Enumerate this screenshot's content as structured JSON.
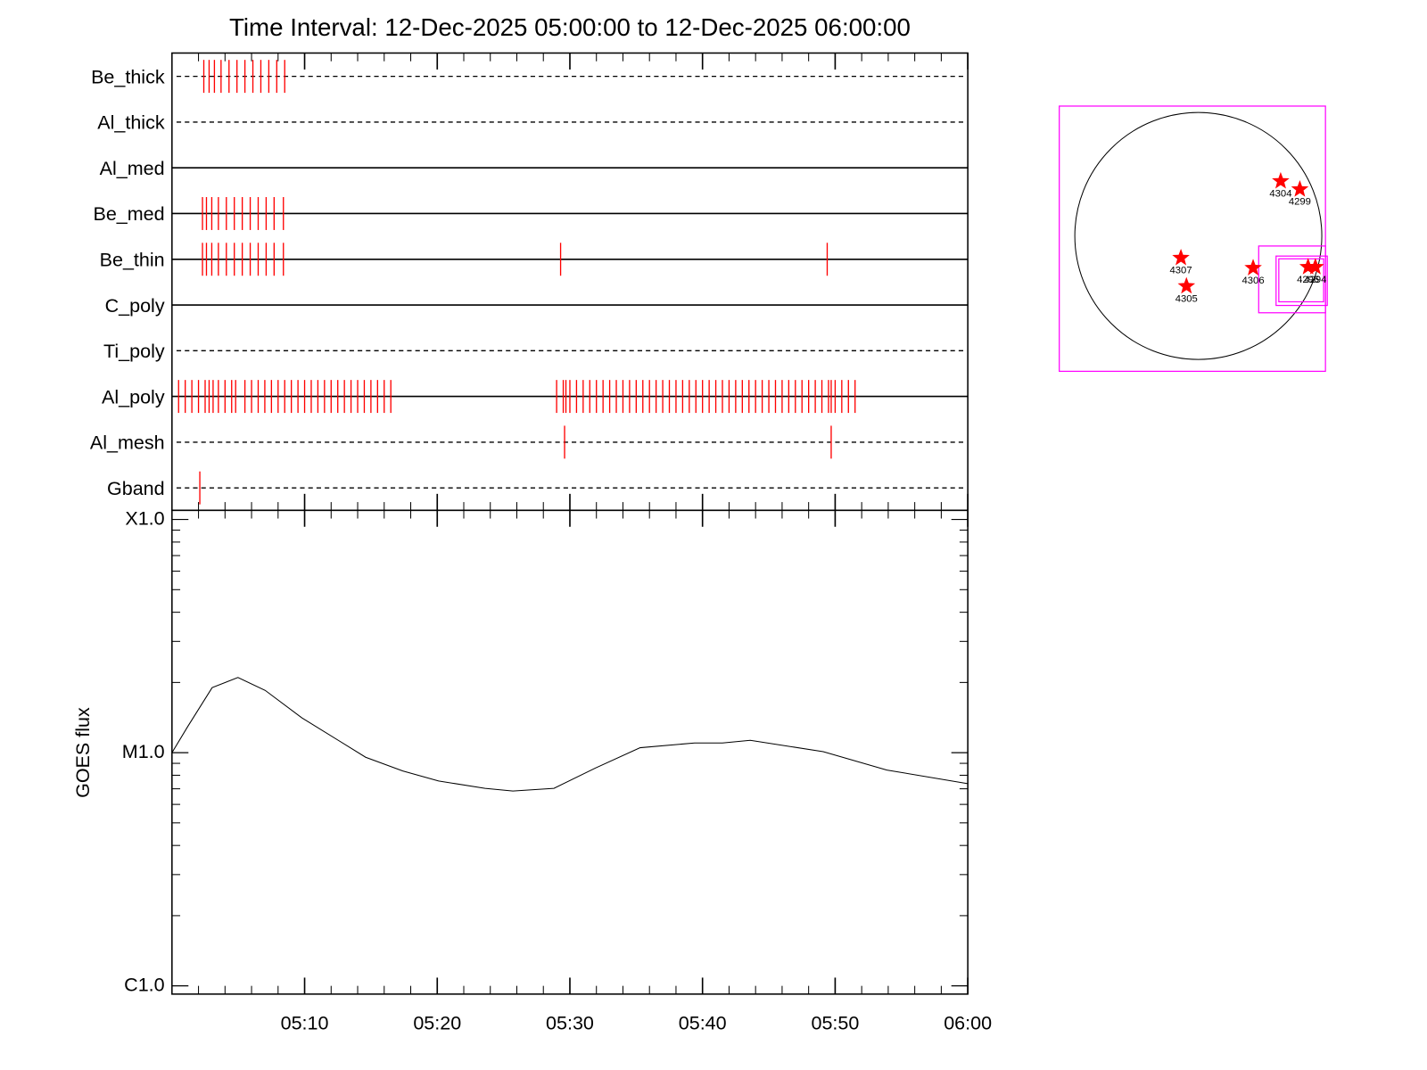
{
  "chart_data": [
    {
      "type": "event",
      "title": "Time Interval: 12-Dec-2025 05:00:00 to 12-Dec-2025 06:00:00",
      "xlim": [
        0,
        60
      ],
      "series": [
        {
          "name": "Be_thick",
          "line": "dashed",
          "color": "#ff0000",
          "x": [
            2.4,
            2.8,
            3.2,
            3.7,
            4.3,
            4.9,
            5.5,
            6.1,
            6.7,
            7.3,
            7.9,
            8.5
          ]
        },
        {
          "name": "Al_thick",
          "line": "dashed",
          "color": "#ff0000",
          "x": []
        },
        {
          "name": "Al_med",
          "line": "solid",
          "color": "#ff0000",
          "x": []
        },
        {
          "name": "Be_med",
          "line": "solid",
          "color": "#ff0000",
          "x": [
            2.3,
            2.6,
            3.0,
            3.5,
            4.1,
            4.7,
            5.3,
            5.9,
            6.5,
            7.1,
            7.7,
            8.4
          ]
        },
        {
          "name": "Be_thin",
          "line": "solid",
          "color": "#ff0000",
          "x": [
            2.3,
            2.6,
            3.0,
            3.5,
            4.1,
            4.7,
            5.3,
            5.9,
            6.5,
            7.1,
            7.7,
            8.4,
            29.3,
            49.4
          ]
        },
        {
          "name": "C_poly",
          "line": "solid",
          "color": "#ff0000",
          "x": []
        },
        {
          "name": "Ti_poly",
          "line": "dashed",
          "color": "#ff0000",
          "x": []
        },
        {
          "name": "Al_poly",
          "line": "solid",
          "color": "#ff0000",
          "x": [
            0.5,
            1.0,
            1.5,
            2.0,
            2.5,
            2.8,
            3.1,
            3.5,
            4.0,
            4.5,
            4.8,
            5.5,
            6.0,
            6.5,
            7.0,
            7.5,
            8.0,
            8.5,
            9.0,
            9.5,
            10.0,
            10.5,
            11.0,
            11.5,
            12.0,
            12.5,
            13.0,
            13.5,
            14.0,
            14.5,
            15.0,
            15.5,
            16.0,
            16.5,
            29.0,
            29.5,
            29.7,
            30.0,
            30.5,
            31.0,
            31.5,
            32.0,
            32.5,
            33.0,
            33.5,
            34.0,
            34.5,
            35.0,
            35.5,
            36.0,
            36.5,
            37.0,
            37.5,
            38.0,
            38.5,
            39.0,
            39.5,
            40.0,
            40.5,
            41.0,
            41.5,
            42.0,
            42.5,
            43.0,
            43.5,
            44.0,
            44.5,
            45.0,
            45.5,
            46.0,
            46.5,
            47.0,
            47.5,
            48.0,
            48.5,
            49.0,
            49.5,
            49.7,
            50.0,
            50.5,
            51.0,
            51.5
          ]
        },
        {
          "name": "Al_mesh",
          "line": "dashed",
          "color": "#ff0000",
          "x": [
            29.6,
            49.7
          ]
        },
        {
          "name": "Gband",
          "line": "dashed",
          "color": "#ff0000",
          "x": [
            2.1
          ]
        }
      ]
    },
    {
      "type": "line",
      "ylabel": "GOES flux",
      "log": true,
      "color": "#000000",
      "xlim": [
        0,
        60
      ],
      "xticks": [
        {
          "value": 10,
          "label": "05:10"
        },
        {
          "value": 20,
          "label": "05:20"
        },
        {
          "value": 30,
          "label": "05:30"
        },
        {
          "value": 40,
          "label": "05:40"
        },
        {
          "value": 50,
          "label": "05:50"
        },
        {
          "value": 60,
          "label": "06:00"
        }
      ],
      "ylim": [
        1e-06,
        0.0001
      ],
      "yticks": [
        {
          "value": 1e-06,
          "label": "C1.0"
        },
        {
          "value": 1e-05,
          "label": "M1.0"
        },
        {
          "value": 0.0001,
          "label": "X1.0"
        }
      ],
      "x": [
        0,
        1.17,
        3.03,
        4.97,
        7.03,
        9.79,
        14.6,
        17.4,
        20.1,
        23.6,
        25.7,
        28.8,
        31.9,
        35.3,
        39.4,
        41.5,
        43.6,
        49.1,
        53.9,
        60
      ],
      "values": [
        1e-05,
        1.29e-05,
        1.9e-05,
        2.1e-05,
        1.85e-05,
        1.41e-05,
        9.56e-06,
        8.35e-06,
        7.56e-06,
        7.03e-06,
        6.85e-06,
        7.03e-06,
        8.58e-06,
        1.05e-05,
        1.1e-05,
        1.1e-05,
        1.13e-05,
        1.01e-05,
        8.42e-06,
        7.36e-06
      ]
    },
    {
      "type": "map",
      "color": "#ff0000",
      "series": [
        {
          "name": "4304",
          "x": 0.667,
          "y": 0.444
        },
        {
          "name": "4299",
          "x": 0.822,
          "y": 0.378
        },
        {
          "name": "4307",
          "x": -0.141,
          "y": -0.178
        },
        {
          "name": "4305",
          "x": -0.096,
          "y": -0.407
        },
        {
          "name": "4306",
          "x": 0.444,
          "y": -0.259
        },
        {
          "name": "4296",
          "x": 0.889,
          "y": -0.252
        },
        {
          "name": "4294",
          "x": 0.948,
          "y": -0.252
        }
      ]
    }
  ]
}
